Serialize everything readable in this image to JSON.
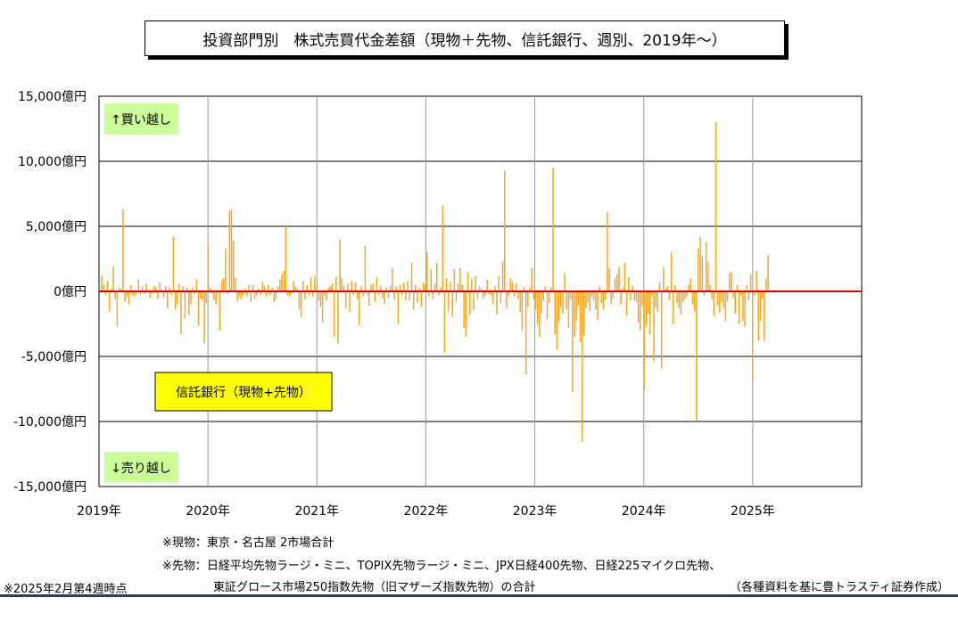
{
  "title": "投資部門別　株式売買代金差額（現物＋先物、信託銀行、週別、2019年～）",
  "notes": {
    "spot": "※現物：東京・名古屋 2市場合計",
    "futures_line1": "※先物：日経平均先物ラージ・ミニ、TOPIX先物ラージ・ミニ、JPX日経400先物、日経225マイクロ先物、",
    "futures_line2": "東証グロース市場250指数先物（旧マザーズ指数先物）の合計",
    "as_of": "※2025年2月第4週時点",
    "source": "（各種資料を基に豊トラスティ証券作成）"
  },
  "chart_data": {
    "type": "bar",
    "title": "投資部門別　株式売買代金差額（現物＋先物、信託銀行、週別、2019年～）",
    "unit": "億円",
    "ylim": [
      -15000,
      15000
    ],
    "y_ticks": [
      15000,
      10000,
      5000,
      0,
      -5000,
      -10000,
      -15000
    ],
    "y_tick_labels": [
      "15,000億円",
      "10,000億円",
      "5,000億円",
      "0億円",
      "-5,000億円",
      "-10,000億円",
      "-15,000億円"
    ],
    "x_tick_labels": [
      "2019年",
      "2020年",
      "2021年",
      "2022年",
      "2023年",
      "2024年",
      "2025年"
    ],
    "x_range_years": [
      2019,
      2026
    ],
    "grid": true,
    "zero_line_color": "#e00000",
    "bar_color": "#f5a623",
    "legend_label": "信託銀行（現物+先物）",
    "annotation_buy": "↑買い越し",
    "annotation_sell": "↓売り越し",
    "series": [
      {
        "name": "信託銀行（現物+先物）",
        "values": [
          1200,
          500,
          -300,
          800,
          -1500,
          200,
          1900,
          -600,
          -2700,
          300,
          200,
          6300,
          -800,
          -400,
          -1000,
          500,
          -300,
          -400,
          -200,
          900,
          -300,
          400,
          -200,
          600,
          -100,
          -500,
          -200,
          400,
          300,
          -600,
          700,
          -100,
          -500,
          400,
          -1300,
          300,
          -300,
          4200,
          -1400,
          -1000,
          600,
          -3300,
          400,
          -2100,
          300,
          -1800,
          -1000,
          300,
          -200,
          900,
          -2600,
          -500,
          -700,
          -4000,
          -900,
          3600,
          300,
          -200,
          -700,
          -1000,
          100,
          -3000,
          800,
          1000,
          3300,
          -200,
          6200,
          6300,
          3900,
          1000,
          -800,
          -400,
          -600,
          -300,
          200,
          -400,
          500,
          -800,
          500,
          -600,
          -300,
          200,
          -300,
          700,
          400,
          -400,
          500,
          -300,
          300,
          -800,
          -600,
          400,
          900,
          1300,
          1600,
          5000,
          -300,
          -400,
          -200,
          800,
          400,
          200,
          -1400,
          -2000,
          800,
          -600,
          500,
          -300,
          1100,
          -400,
          1200,
          500,
          -700,
          -1200,
          -2400,
          -300,
          -700,
          300,
          400,
          600,
          -3500,
          1100,
          -4000,
          4000,
          1000,
          400,
          -1300,
          600,
          -1600,
          800,
          -300,
          700,
          -600,
          -2600,
          400,
          -400,
          3500,
          -300,
          -1100,
          500,
          600,
          -800,
          1100,
          -300,
          400,
          -500,
          -1000,
          300,
          -500,
          400,
          1800,
          -600,
          400,
          -2500,
          500,
          -300,
          700,
          -700,
          800,
          -700,
          2200,
          -1400,
          500,
          -900,
          300,
          -1200,
          700,
          500,
          3000,
          -400,
          1700,
          -600,
          600,
          2200,
          -300,
          300,
          6600,
          -4700,
          1000,
          -1500,
          700,
          -2000,
          1700,
          -800,
          600,
          1800,
          500,
          -2800,
          -3500,
          1500,
          -1800,
          1000,
          -1400,
          1200,
          -600,
          400,
          200,
          -500,
          -300,
          900,
          -200,
          -300,
          -1000,
          400,
          -1800,
          1200,
          -900,
          2300,
          9300,
          -1300,
          -400,
          1000,
          700,
          -400,
          600,
          -600,
          -1600,
          -3000,
          300,
          -6400,
          -1200,
          300,
          1800,
          -600,
          -1400,
          -2500,
          -3500,
          -1700,
          -700,
          400,
          -2100,
          -900,
          300,
          9500,
          -3300,
          -4500,
          -2300,
          -1200,
          -1700,
          1400,
          -1400,
          -2800,
          -600,
          -7700,
          -3500,
          -2300,
          -1100,
          -3900,
          -11600,
          -3400,
          -1300,
          -800,
          -1500,
          -400,
          -700,
          -1400,
          -2200,
          400,
          -900,
          -1400,
          -600,
          6100,
          1800,
          -1000,
          -500,
          1000,
          1300,
          1900,
          -1000,
          300,
          2200,
          -1900,
          1100,
          -700,
          400,
          -700,
          -800,
          -2400,
          -3000,
          -1100,
          -7600,
          -2600,
          -1700,
          -3300,
          -300,
          -5400,
          -1200,
          -1600,
          700,
          -5900,
          1900,
          200,
          400,
          -700,
          3000,
          -2500,
          500,
          -900,
          -1300,
          -1800,
          -800,
          -600,
          -400,
          500,
          1000,
          -1000,
          -1500,
          -10000,
          3300,
          4200,
          2700,
          -300,
          3800,
          2300,
          500,
          -600,
          -1900,
          13000,
          -1100,
          -1600,
          -800,
          -1300,
          -2300,
          -800,
          1400,
          1500,
          -500,
          -1700,
          500,
          -2500,
          -300,
          -2300,
          -2700,
          500,
          -700,
          1300,
          -6900,
          -300,
          1600,
          -3800,
          -2300,
          -500,
          -3800,
          1000,
          2800
        ]
      }
    ]
  }
}
